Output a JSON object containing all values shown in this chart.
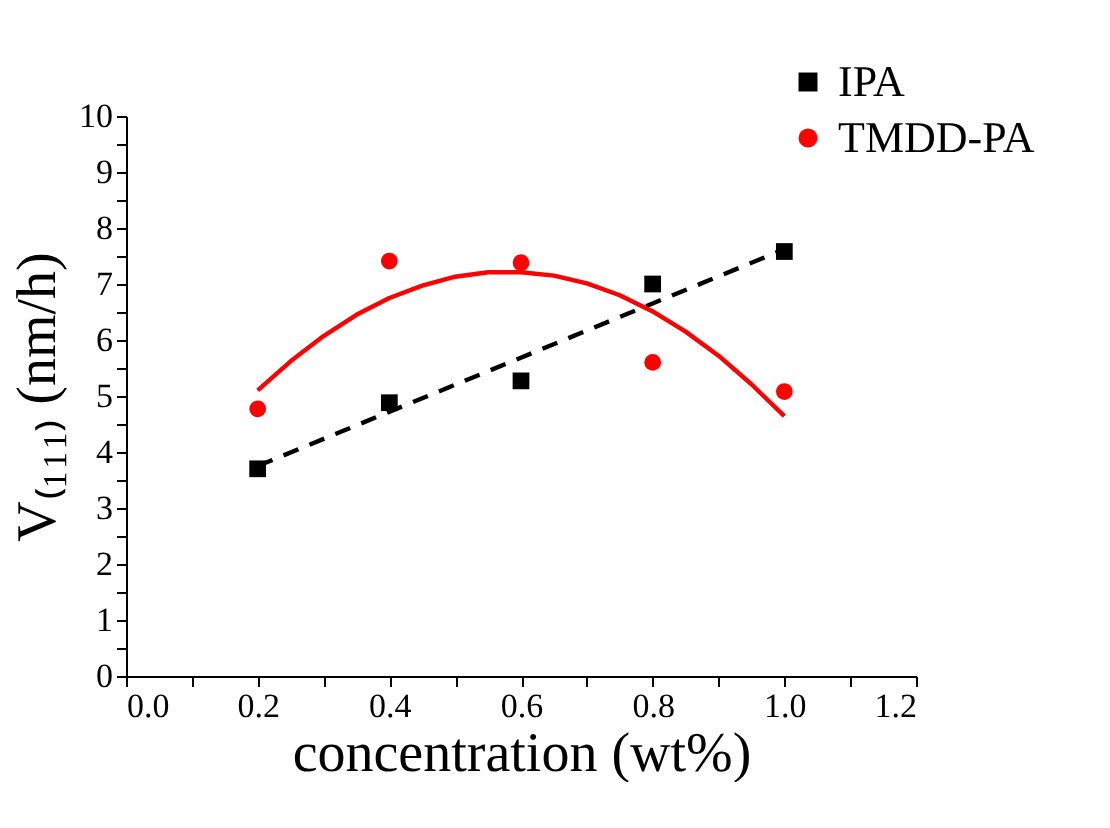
{
  "chart_data": {
    "type": "scatter",
    "xlabel": "concentration (wt%)",
    "ylabel": "V₍₁₁₁₎ (nm/h)",
    "x": [
      0.2,
      0.4,
      0.6,
      0.8,
      1.0
    ],
    "series": [
      {
        "name": "IPA",
        "color": "#000000",
        "marker": "square",
        "values": [
          3.7,
          4.88,
          5.27,
          7.0,
          7.58
        ]
      },
      {
        "name": "TMDD-PA",
        "color": "#ff0000",
        "marker": "circle",
        "values": [
          4.77,
          7.41,
          7.38,
          5.6,
          5.08
        ]
      },
      {
        "type": "line",
        "color": "#000000",
        "line_style": "dashed",
        "marker": "none",
        "x": [
          0.2,
          1.0
        ],
        "values": [
          3.75,
          7.62
        ]
      },
      {
        "type": "line",
        "color": "#ff0000",
        "line_style": "solid",
        "marker": "none",
        "x": [
          0.2,
          0.25,
          0.3,
          0.35,
          0.4,
          0.45,
          0.5,
          0.55,
          0.6,
          0.65,
          0.7,
          0.75,
          0.8,
          0.85,
          0.9,
          0.95,
          1.0
        ],
        "values": [
          5.1,
          5.62,
          6.07,
          6.45,
          6.75,
          6.97,
          7.13,
          7.21,
          7.21,
          7.15,
          7.01,
          6.8,
          6.51,
          6.15,
          5.72,
          5.21,
          4.64
        ]
      }
    ],
    "xlim": [
      0.0,
      1.2
    ],
    "xticks": [
      "0.0",
      {
        "value": 0.1,
        "label": null
      },
      0.2,
      {
        "value": 0.3,
        "label": null
      },
      0.4,
      {
        "value": 0.5,
        "label": null
      },
      0.6,
      {
        "value": 0.7,
        "label": null
      },
      0.8,
      {
        "value": 0.9,
        "label": null
      },
      "1.0",
      {
        "value": 1.1,
        "label": null
      },
      1.2
    ],
    "ylim": [
      0,
      10
    ],
    "yticks": [
      0,
      {
        "value": 0.5,
        "label": null
      },
      1,
      {
        "value": 1.5,
        "label": null
      },
      2,
      {
        "value": 2.5,
        "label": null
      },
      3,
      {
        "value": 3.5,
        "label": null
      },
      4,
      {
        "value": 4.5,
        "label": null
      },
      5,
      {
        "value": 5.5,
        "label": null
      },
      6,
      {
        "value": 6.5,
        "label": null
      },
      7,
      {
        "value": 7.5,
        "label": null
      },
      8,
      {
        "value": 8.5,
        "label": null
      },
      9,
      {
        "value": 9.5,
        "label": null
      },
      10
    ],
    "grid": false,
    "legend": "top right"
  }
}
